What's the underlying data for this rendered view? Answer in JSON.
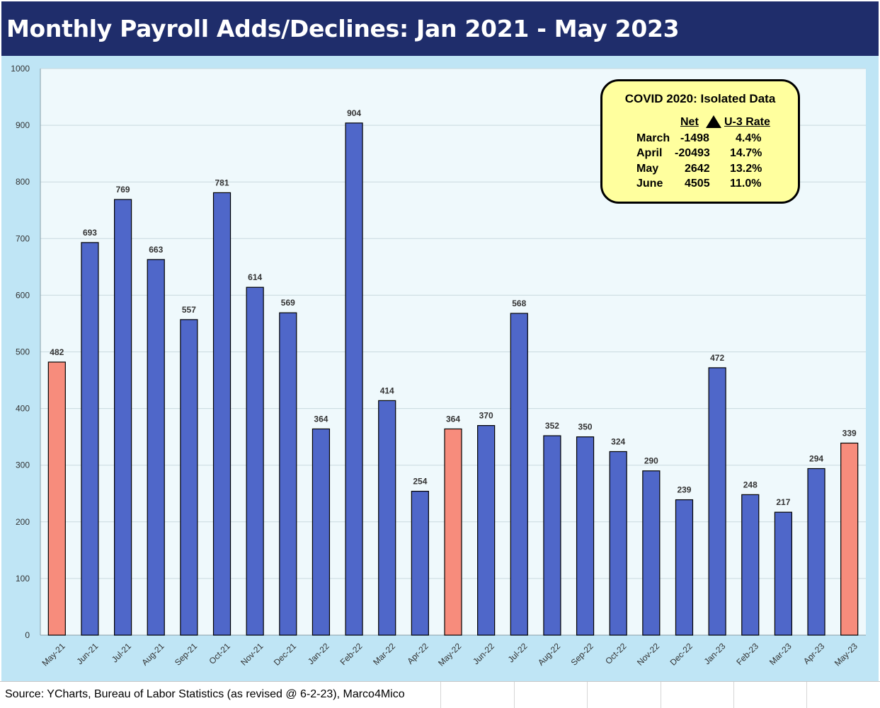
{
  "title": "Monthly Payroll Adds/Declines: Jan 2021 - May 2023",
  "source": "Source: YCharts, Bureau of Labor Statistics (as revised @ 6-2-23), Marco4Mico",
  "colors": {
    "title_bg": "#1f2d6b",
    "bar": "#4f67c9",
    "highlight_bar": "#f78c7c",
    "outer_bg": "#bfe5f5",
    "plot_bg": "#eff9fc",
    "legend_bg": "#ffff9e"
  },
  "legend": {
    "title": "COVID 2020: Isolated Data",
    "col_net": "Net",
    "col_rate": "U-3 Rate",
    "marker_icon": "triangle-up-icon",
    "rows": [
      {
        "label": "March",
        "net": "-1498",
        "rate": "4.4%"
      },
      {
        "label": "April",
        "net": "-20493",
        "rate": "14.7%"
      },
      {
        "label": "May",
        "net": "2642",
        "rate": "13.2%"
      },
      {
        "label": "June",
        "net": "4505",
        "rate": "11.0%"
      }
    ]
  },
  "chart_data": {
    "type": "bar",
    "title": "Monthly Payroll Adds/Declines: Jan 2021 - May 2023",
    "xlabel": "",
    "ylabel": "",
    "ylim": [
      0,
      1000
    ],
    "yticks": [
      0,
      100,
      200,
      300,
      400,
      500,
      600,
      700,
      800,
      900,
      1000
    ],
    "grid": true,
    "categories": [
      "May-21",
      "Jun-21",
      "Jul-21",
      "Aug-21",
      "Sep-21",
      "Oct-21",
      "Nov-21",
      "Dec-21",
      "Jan-22",
      "Feb-22",
      "Mar-22",
      "Apr-22",
      "May-22",
      "Jun-22",
      "Jul-22",
      "Aug-22",
      "Sep-22",
      "Oct-22",
      "Nov-22",
      "Dec-22",
      "Jan-23",
      "Feb-23",
      "Mar-23",
      "Apr-23",
      "May-23"
    ],
    "values": [
      482,
      693,
      769,
      663,
      557,
      781,
      614,
      569,
      364,
      904,
      414,
      254,
      364,
      370,
      568,
      352,
      350,
      324,
      290,
      239,
      472,
      248,
      217,
      294,
      339
    ],
    "highlighted_categories": [
      "May-21",
      "May-22",
      "May-23"
    ],
    "data_labels": true
  }
}
